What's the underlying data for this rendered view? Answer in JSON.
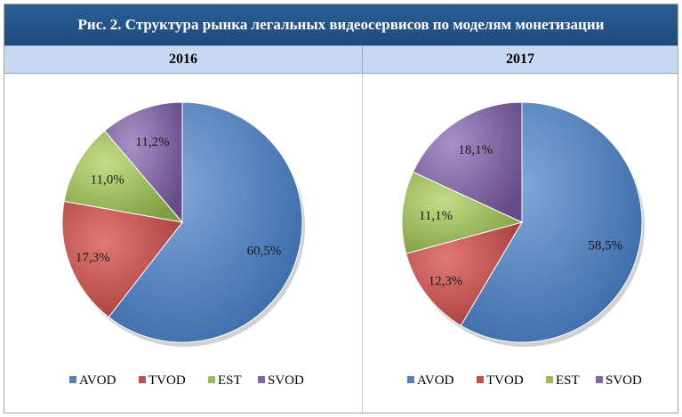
{
  "title": "Рис. 2. Структура рынка легальных видеосервисов по моделям монетизации",
  "colors": {
    "AVOD": "#4f81bd",
    "TVOD": "#c0504d",
    "EST": "#9bbb59",
    "SVOD": "#8064a2"
  },
  "chart_data": [
    {
      "type": "pie",
      "title": "2016",
      "categories": [
        "AVOD",
        "TVOD",
        "EST",
        "SVOD"
      ],
      "values": [
        60.5,
        17.3,
        11.0,
        11.2
      ],
      "labels": [
        "60,5%",
        "17,3%",
        "11,0%",
        "11,2%"
      ],
      "legend": "bottom"
    },
    {
      "type": "pie",
      "title": "2017",
      "categories": [
        "AVOD",
        "TVOD",
        "EST",
        "SVOD"
      ],
      "values": [
        58.5,
        12.3,
        11.1,
        18.1
      ],
      "labels": [
        "58,5%",
        "12,3%",
        "11,1%",
        "18,1%"
      ],
      "legend": "bottom"
    }
  ]
}
